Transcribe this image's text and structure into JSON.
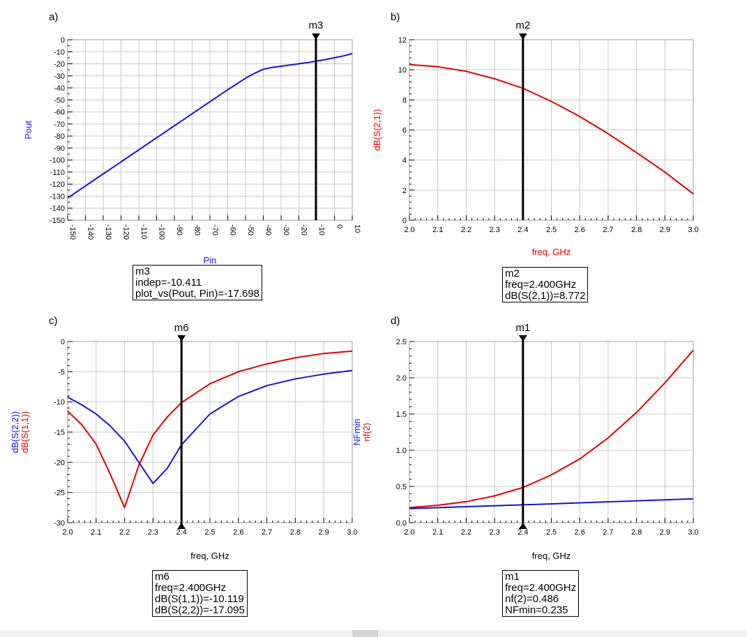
{
  "colors": {
    "red": "#e00000",
    "blue": "#1414d2",
    "grid": "#c8c8c8"
  },
  "markers": {
    "m3": {
      "name": "m3",
      "lines": [
        "m3",
        "indep=-10.411",
        "plot_vs(Pout, Pin)=-17.698"
      ]
    },
    "m2": {
      "name": "m2",
      "lines": [
        "m2",
        "freq=2.400GHz",
        "dB(S(2,1))=8.772"
      ]
    },
    "m6": {
      "name": "m6",
      "lines": [
        "m6",
        "freq=2.400GHz",
        "dB(S(1,1))=-10.119",
        "dB(S(2,2))=-17.095"
      ]
    },
    "m1": {
      "name": "m1",
      "lines": [
        "m1",
        "freq=2.400GHz",
        "nf(2)=0.486",
        "NFmin=0.235"
      ]
    }
  },
  "chart_data": [
    {
      "id": "a",
      "panel_label": "a)",
      "type": "line",
      "xlabel": "Pin",
      "ylabel": [
        {
          "text": "Pout",
          "color": "#1414d2"
        }
      ],
      "xlim": [
        -150,
        10
      ],
      "ylim": [
        -150,
        0
      ],
      "xticks": [
        -150,
        -140,
        -130,
        -120,
        -110,
        -100,
        -90,
        -80,
        -70,
        -60,
        -50,
        -40,
        -30,
        -20,
        -10,
        0,
        10
      ],
      "yticks": [
        0,
        -10,
        -20,
        -30,
        -40,
        -50,
        -60,
        -70,
        -80,
        -90,
        -100,
        -110,
        -120,
        -130,
        -140,
        -150
      ],
      "rotated_xticks": true,
      "yminor": 1,
      "marker_x": -10.411,
      "marker": "m3",
      "marker_arrows": "top",
      "series": [
        {
          "color": "#1414d2",
          "x": [
            -150,
            -140,
            -130,
            -120,
            -110,
            -100,
            -90,
            -80,
            -70,
            -60,
            -50,
            -45,
            -40,
            -35,
            -30,
            -25,
            -20,
            -15,
            -10,
            -5,
            0,
            5,
            10
          ],
          "y": [
            -131.5,
            -121.5,
            -111.5,
            -101.5,
            -91.5,
            -81.5,
            -71.5,
            -61.5,
            -51.5,
            -41.5,
            -32,
            -28,
            -24.5,
            -23,
            -22,
            -21,
            -20,
            -19,
            -17.7,
            -16.5,
            -15,
            -13.5,
            -11.5
          ]
        }
      ]
    },
    {
      "id": "b",
      "panel_label": "b)",
      "type": "line",
      "xlabel": "freq, GHz",
      "xlabel_color": "#e00000",
      "ylabel": [
        {
          "text": "dB(S(2,1))",
          "color": "#e00000"
        }
      ],
      "xlim": [
        2.0,
        3.0
      ],
      "ylim": [
        0,
        12
      ],
      "xticks": [
        2.0,
        2.1,
        2.2,
        2.3,
        2.4,
        2.5,
        2.6,
        2.7,
        2.8,
        2.9,
        3.0
      ],
      "xtick_decimals": 1,
      "yticks": [
        0,
        2,
        4,
        6,
        8,
        10,
        12
      ],
      "ytick_decimals": 0,
      "xminor": 4,
      "yminor": 4,
      "marker_x": 2.4,
      "marker": "m2",
      "marker_arrows": "top",
      "series": [
        {
          "color": "#e00000",
          "x": [
            2.0,
            2.1,
            2.2,
            2.3,
            2.4,
            2.5,
            2.6,
            2.7,
            2.8,
            2.9,
            3.0
          ],
          "y": [
            10.35,
            10.2,
            9.9,
            9.4,
            8.77,
            7.9,
            6.9,
            5.75,
            4.5,
            3.2,
            1.75
          ]
        }
      ]
    },
    {
      "id": "c",
      "panel_label": "c)",
      "type": "line",
      "xlabel": "freq, GHz",
      "ylabel": [
        {
          "text": "dB(S(1,1))",
          "color": "#e00000"
        },
        {
          "text": "dB(S(2,2))",
          "color": "#1414d2"
        }
      ],
      "xlim": [
        2.0,
        3.0
      ],
      "ylim": [
        -30,
        0
      ],
      "xticks": [
        2.0,
        2.1,
        2.2,
        2.3,
        2.4,
        2.5,
        2.6,
        2.7,
        2.8,
        2.9,
        3.0
      ],
      "xtick_decimals": 1,
      "yticks": [
        0,
        -5,
        -10,
        -15,
        -20,
        -25,
        -30
      ],
      "ytick_decimals": 0,
      "xminor": 4,
      "yminor": 4,
      "marker_x": 2.4,
      "marker": "m6",
      "marker_arrows": "both",
      "series": [
        {
          "color": "#e00000",
          "x": [
            2.0,
            2.05,
            2.1,
            2.15,
            2.2,
            2.25,
            2.3,
            2.35,
            2.4,
            2.5,
            2.6,
            2.7,
            2.8,
            2.9,
            3.0
          ],
          "y": [
            -11.5,
            -13.8,
            -17,
            -22,
            -27.5,
            -20.5,
            -15.5,
            -12.5,
            -10.12,
            -7,
            -5,
            -3.7,
            -2.7,
            -2,
            -1.6
          ]
        },
        {
          "color": "#1414d2",
          "x": [
            2.0,
            2.05,
            2.1,
            2.15,
            2.2,
            2.25,
            2.3,
            2.35,
            2.4,
            2.5,
            2.6,
            2.7,
            2.8,
            2.9,
            3.0
          ],
          "y": [
            -9.2,
            -10.5,
            -12,
            -14,
            -16.5,
            -20,
            -23.5,
            -21,
            -17.1,
            -12,
            -9.1,
            -7.3,
            -6.2,
            -5.4,
            -4.8
          ]
        }
      ]
    },
    {
      "id": "d",
      "panel_label": "d)",
      "type": "line",
      "xlabel": "freq, GHz",
      "ylabel": [
        {
          "text": "nf(2)",
          "color": "#e00000"
        },
        {
          "text": "NFmin",
          "color": "#1414d2"
        }
      ],
      "xlim": [
        2.0,
        3.0
      ],
      "ylim": [
        0,
        2.5
      ],
      "xticks": [
        2.0,
        2.1,
        2.2,
        2.3,
        2.4,
        2.5,
        2.6,
        2.7,
        2.8,
        2.9,
        3.0
      ],
      "xtick_decimals": 1,
      "yticks": [
        0.0,
        0.5,
        1.0,
        1.5,
        2.0,
        2.5
      ],
      "ytick_decimals": 1,
      "xminor": 4,
      "yminor": 4,
      "marker_x": 2.4,
      "marker": "m1",
      "marker_arrows": "both",
      "series": [
        {
          "color": "#e00000",
          "x": [
            2.0,
            2.1,
            2.2,
            2.3,
            2.4,
            2.5,
            2.6,
            2.7,
            2.8,
            2.9,
            3.0
          ],
          "y": [
            0.21,
            0.24,
            0.29,
            0.37,
            0.486,
            0.66,
            0.88,
            1.17,
            1.52,
            1.93,
            2.38
          ]
        },
        {
          "color": "#1414d2",
          "x": [
            2.0,
            2.5,
            3.0
          ],
          "y": [
            0.195,
            0.26,
            0.33
          ]
        }
      ]
    }
  ]
}
